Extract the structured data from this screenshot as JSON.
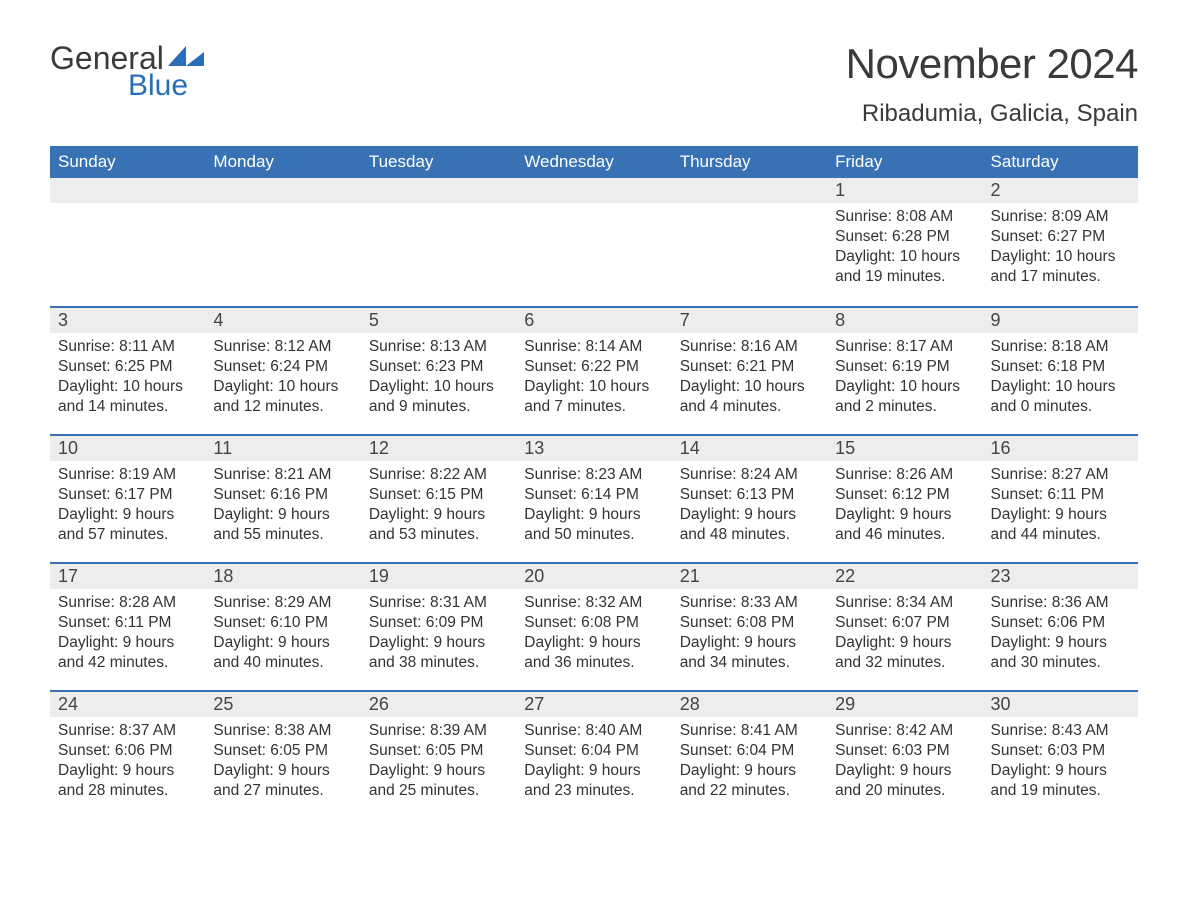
{
  "logo": {
    "text1": "General",
    "text2": "Blue",
    "text1_color": "#3a3a3a",
    "text2_color": "#2a6db8",
    "icon_color": "#2a6db8"
  },
  "title": "November 2024",
  "location": "Ribadumia, Galicia, Spain",
  "colors": {
    "header_bg": "#3872b4",
    "header_fg": "#ffffff",
    "daynum_bg": "#ededed",
    "row_border": "#3872b4",
    "text": "#333333",
    "bg": "#ffffff"
  },
  "fonts": {
    "title_size": 42,
    "location_size": 24,
    "header_size": 17,
    "daynum_size": 18,
    "body_size": 15.5
  },
  "weekdays": [
    "Sunday",
    "Monday",
    "Tuesday",
    "Wednesday",
    "Thursday",
    "Friday",
    "Saturday"
  ],
  "leading_blanks": 5,
  "days": [
    {
      "n": 1,
      "sunrise": "8:08 AM",
      "sunset": "6:28 PM",
      "dl1": "Daylight: 10 hours",
      "dl2": "and 19 minutes."
    },
    {
      "n": 2,
      "sunrise": "8:09 AM",
      "sunset": "6:27 PM",
      "dl1": "Daylight: 10 hours",
      "dl2": "and 17 minutes."
    },
    {
      "n": 3,
      "sunrise": "8:11 AM",
      "sunset": "6:25 PM",
      "dl1": "Daylight: 10 hours",
      "dl2": "and 14 minutes."
    },
    {
      "n": 4,
      "sunrise": "8:12 AM",
      "sunset": "6:24 PM",
      "dl1": "Daylight: 10 hours",
      "dl2": "and 12 minutes."
    },
    {
      "n": 5,
      "sunrise": "8:13 AM",
      "sunset": "6:23 PM",
      "dl1": "Daylight: 10 hours",
      "dl2": "and 9 minutes."
    },
    {
      "n": 6,
      "sunrise": "8:14 AM",
      "sunset": "6:22 PM",
      "dl1": "Daylight: 10 hours",
      "dl2": "and 7 minutes."
    },
    {
      "n": 7,
      "sunrise": "8:16 AM",
      "sunset": "6:21 PM",
      "dl1": "Daylight: 10 hours",
      "dl2": "and 4 minutes."
    },
    {
      "n": 8,
      "sunrise": "8:17 AM",
      "sunset": "6:19 PM",
      "dl1": "Daylight: 10 hours",
      "dl2": "and 2 minutes."
    },
    {
      "n": 9,
      "sunrise": "8:18 AM",
      "sunset": "6:18 PM",
      "dl1": "Daylight: 10 hours",
      "dl2": "and 0 minutes."
    },
    {
      "n": 10,
      "sunrise": "8:19 AM",
      "sunset": "6:17 PM",
      "dl1": "Daylight: 9 hours",
      "dl2": "and 57 minutes."
    },
    {
      "n": 11,
      "sunrise": "8:21 AM",
      "sunset": "6:16 PM",
      "dl1": "Daylight: 9 hours",
      "dl2": "and 55 minutes."
    },
    {
      "n": 12,
      "sunrise": "8:22 AM",
      "sunset": "6:15 PM",
      "dl1": "Daylight: 9 hours",
      "dl2": "and 53 minutes."
    },
    {
      "n": 13,
      "sunrise": "8:23 AM",
      "sunset": "6:14 PM",
      "dl1": "Daylight: 9 hours",
      "dl2": "and 50 minutes."
    },
    {
      "n": 14,
      "sunrise": "8:24 AM",
      "sunset": "6:13 PM",
      "dl1": "Daylight: 9 hours",
      "dl2": "and 48 minutes."
    },
    {
      "n": 15,
      "sunrise": "8:26 AM",
      "sunset": "6:12 PM",
      "dl1": "Daylight: 9 hours",
      "dl2": "and 46 minutes."
    },
    {
      "n": 16,
      "sunrise": "8:27 AM",
      "sunset": "6:11 PM",
      "dl1": "Daylight: 9 hours",
      "dl2": "and 44 minutes."
    },
    {
      "n": 17,
      "sunrise": "8:28 AM",
      "sunset": "6:11 PM",
      "dl1": "Daylight: 9 hours",
      "dl2": "and 42 minutes."
    },
    {
      "n": 18,
      "sunrise": "8:29 AM",
      "sunset": "6:10 PM",
      "dl1": "Daylight: 9 hours",
      "dl2": "and 40 minutes."
    },
    {
      "n": 19,
      "sunrise": "8:31 AM",
      "sunset": "6:09 PM",
      "dl1": "Daylight: 9 hours",
      "dl2": "and 38 minutes."
    },
    {
      "n": 20,
      "sunrise": "8:32 AM",
      "sunset": "6:08 PM",
      "dl1": "Daylight: 9 hours",
      "dl2": "and 36 minutes."
    },
    {
      "n": 21,
      "sunrise": "8:33 AM",
      "sunset": "6:08 PM",
      "dl1": "Daylight: 9 hours",
      "dl2": "and 34 minutes."
    },
    {
      "n": 22,
      "sunrise": "8:34 AM",
      "sunset": "6:07 PM",
      "dl1": "Daylight: 9 hours",
      "dl2": "and 32 minutes."
    },
    {
      "n": 23,
      "sunrise": "8:36 AM",
      "sunset": "6:06 PM",
      "dl1": "Daylight: 9 hours",
      "dl2": "and 30 minutes."
    },
    {
      "n": 24,
      "sunrise": "8:37 AM",
      "sunset": "6:06 PM",
      "dl1": "Daylight: 9 hours",
      "dl2": "and 28 minutes."
    },
    {
      "n": 25,
      "sunrise": "8:38 AM",
      "sunset": "6:05 PM",
      "dl1": "Daylight: 9 hours",
      "dl2": "and 27 minutes."
    },
    {
      "n": 26,
      "sunrise": "8:39 AM",
      "sunset": "6:05 PM",
      "dl1": "Daylight: 9 hours",
      "dl2": "and 25 minutes."
    },
    {
      "n": 27,
      "sunrise": "8:40 AM",
      "sunset": "6:04 PM",
      "dl1": "Daylight: 9 hours",
      "dl2": "and 23 minutes."
    },
    {
      "n": 28,
      "sunrise": "8:41 AM",
      "sunset": "6:04 PM",
      "dl1": "Daylight: 9 hours",
      "dl2": "and 22 minutes."
    },
    {
      "n": 29,
      "sunrise": "8:42 AM",
      "sunset": "6:03 PM",
      "dl1": "Daylight: 9 hours",
      "dl2": "and 20 minutes."
    },
    {
      "n": 30,
      "sunrise": "8:43 AM",
      "sunset": "6:03 PM",
      "dl1": "Daylight: 9 hours",
      "dl2": "and 19 minutes."
    }
  ],
  "labels": {
    "sunrise": "Sunrise: ",
    "sunset": "Sunset: "
  }
}
